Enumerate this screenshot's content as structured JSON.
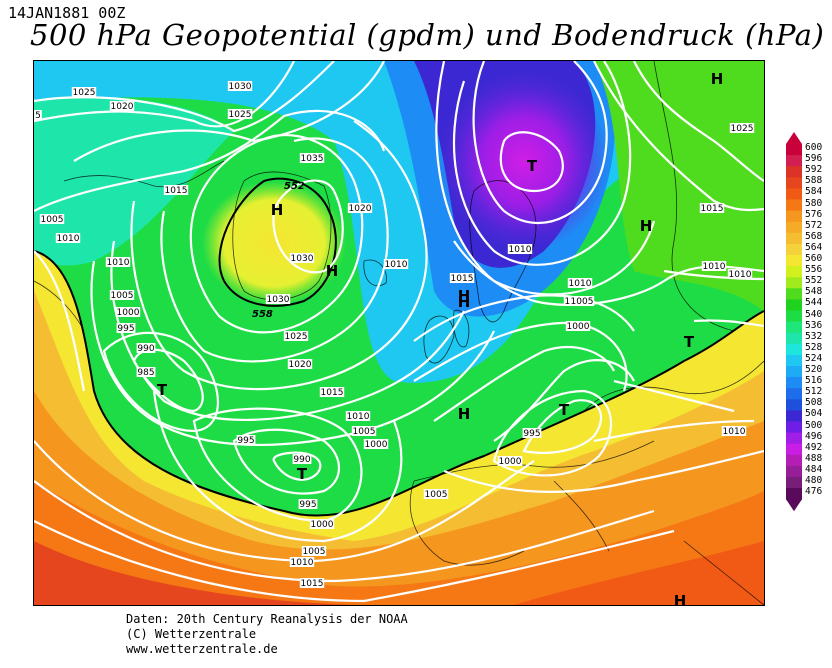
{
  "header": {
    "date": "14JAN1881 00Z",
    "title": "500 hPa Geopotential (gpdm) und Bodendruck (hPa)"
  },
  "map": {
    "pressure_labels": [
      "1025",
      "1020",
      "1030",
      "1035",
      "1025",
      "1020",
      "1015",
      "1010",
      "1005",
      "1010",
      "1010",
      "1005",
      "1000",
      "995",
      "990",
      "985",
      "1030",
      "1030",
      "1025",
      "1020",
      "1015",
      "1010",
      "1005",
      "1000",
      "995",
      "990",
      "995",
      "1000",
      "1005",
      "1010",
      "1015",
      "1005",
      "1000",
      "1005",
      "1010",
      "1015",
      "1025",
      "1015",
      "1010",
      "1010",
      "1005",
      "1010",
      "1000",
      "995",
      "1000",
      "1010",
      "5"
    ],
    "geopot_labels": [
      "552",
      "558"
    ],
    "high_marks": [
      "H",
      "H",
      "H",
      "H",
      "H",
      "H",
      "H",
      "H"
    ],
    "low_marks": [
      "T",
      "T",
      "T",
      "T",
      "T"
    ]
  },
  "scale": {
    "values": [
      "600",
      "596",
      "592",
      "588",
      "584",
      "580",
      "576",
      "572",
      "568",
      "564",
      "560",
      "556",
      "552",
      "548",
      "544",
      "540",
      "536",
      "532",
      "528",
      "524",
      "520",
      "516",
      "512",
      "508",
      "504",
      "500",
      "496",
      "492",
      "488",
      "484",
      "480",
      "476"
    ],
    "colors": [
      "#c8003c",
      "#d21e50",
      "#dc3228",
      "#e6461e",
      "#f05a14",
      "#f57814",
      "#f5961e",
      "#f5aa28",
      "#f5be32",
      "#f5d23c",
      "#f5e632",
      "#d2f01e",
      "#a0eb1e",
      "#50dc1e",
      "#1ed21e",
      "#1edc46",
      "#1ee678",
      "#1ee6aa",
      "#1ee6dc",
      "#1ec8f0",
      "#1eaaf5",
      "#1e8cf5",
      "#1e6eeb",
      "#1e50dc",
      "#3c28d2",
      "#6e1ee6",
      "#a01ee6",
      "#c81ee6",
      "#b41eb4",
      "#961e96",
      "#781e78",
      "#5a0a5a"
    ]
  },
  "credits": {
    "line1": "Daten: 20th Century Reanalysis der NOAA",
    "line2": "(C) Wetterzentrale",
    "line3": "www.wetterzentrale.de"
  }
}
